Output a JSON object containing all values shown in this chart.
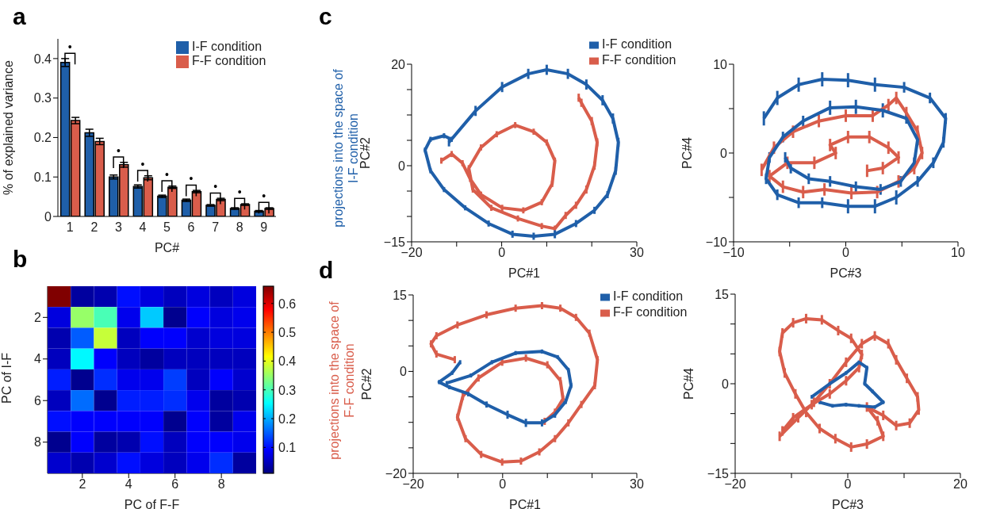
{
  "chart_data": [
    {
      "type": "bar",
      "title": "a",
      "xlabel": "PC#",
      "ylabel": "% of explained variance",
      "categories": [
        "1",
        "2",
        "3",
        "4",
        "5",
        "6",
        "7",
        "8",
        "9"
      ],
      "ylim": [
        0,
        0.45
      ],
      "yticks": [
        0,
        0.1,
        0.2,
        0.3,
        0.4
      ],
      "legend": "top right",
      "series": [
        {
          "name": "I-F condition",
          "color": "#1f5fa9",
          "values": [
            0.39,
            0.212,
            0.1,
            0.076,
            0.051,
            0.041,
            0.028,
            0.02,
            0.013
          ],
          "errors": [
            0.01,
            0.009,
            0.005,
            0.004,
            0.003,
            0.003,
            0.002,
            0.002,
            0.002
          ]
        },
        {
          "name": "F-F condition",
          "color": "#d95d4b",
          "values": [
            0.243,
            0.19,
            0.131,
            0.098,
            0.074,
            0.063,
            0.043,
            0.03,
            0.02
          ],
          "errors": [
            0.008,
            0.008,
            0.006,
            0.005,
            0.003,
            0.003,
            0.003,
            0.002,
            0.002
          ]
        }
      ],
      "annotations": [
        "•",
        "•",
        "•",
        "•",
        "•",
        "•",
        "•",
        "•"
      ]
    },
    {
      "type": "heatmap",
      "title": "b",
      "xlabel": "PC of F-F",
      "ylabel": "PC of I-F",
      "categories": [
        null,
        "2",
        null,
        "4",
        null,
        "6",
        null,
        "8",
        null
      ],
      "y_categories": [
        null,
        "2",
        null,
        "4",
        null,
        "6",
        null,
        "8",
        null
      ],
      "clim": [
        0.01,
        0.66
      ],
      "cticks": [
        0.1,
        0.2,
        0.3,
        0.4,
        0.5,
        0.6
      ],
      "cells": [
        [
          0.66,
          0.03,
          0.04,
          0.1,
          0.07,
          0.05,
          0.07,
          0.05,
          0.07
        ],
        [
          0.07,
          0.35,
          0.3,
          0.08,
          0.22,
          0.02,
          0.09,
          0.07,
          0.08
        ],
        [
          0.04,
          0.15,
          0.38,
          0.05,
          0.09,
          0.09,
          0.06,
          0.07,
          0.07
        ],
        [
          0.05,
          0.25,
          0.09,
          0.05,
          0.03,
          0.05,
          0.05,
          0.05,
          0.05
        ],
        [
          0.11,
          0.02,
          0.12,
          0.08,
          0.08,
          0.13,
          0.05,
          0.09,
          0.06
        ],
        [
          0.05,
          0.16,
          0.02,
          0.11,
          0.11,
          0.12,
          0.08,
          0.03,
          0.04
        ],
        [
          0.1,
          0.09,
          0.09,
          0.09,
          0.09,
          0.02,
          0.09,
          0.03,
          0.08
        ],
        [
          0.02,
          0.09,
          0.03,
          0.04,
          0.1,
          0.05,
          0.09,
          0.09,
          0.08
        ],
        [
          0.06,
          0.04,
          0.06,
          0.1,
          0.07,
          0.05,
          0.08,
          0.12,
          0.03
        ]
      ]
    },
    {
      "type": "line",
      "title": "c",
      "xlabel": "PC#1",
      "ylabel": "PC#2",
      "legend": "top right",
      "annotations": [
        "projections into the space of I-F condition"
      ],
      "xlim": [
        -20,
        30
      ],
      "xticks": [
        {
          "value": -20,
          "label": "−20"
        },
        {
          "value": -10,
          "label": null
        },
        0,
        {
          "value": 10,
          "label": null
        },
        {
          "value": 20,
          "label": null
        },
        30
      ],
      "ylim": [
        -15,
        20
      ],
      "yticks": [
        {
          "value": -15,
          "label": "−15"
        },
        {
          "value": -10,
          "label": null
        },
        {
          "value": -5,
          "label": null
        },
        0,
        {
          "value": 5,
          "label": null
        },
        {
          "value": 10,
          "label": null
        },
        {
          "value": 15,
          "label": null
        },
        20
      ],
      "series": [
        {
          "name": "I-F condition",
          "color": "#1f5fa9",
          "x": [
            -11.7,
            -5.8,
            0.1,
            5.9,
            10.0,
            14.7,
            18.8,
            22.4,
            24.7,
            25.9,
            25.3,
            23.5,
            20.6,
            16.5,
            11.8,
            7.1,
            2.4,
            -2.9,
            -8.1,
            -12.8,
            -15.8,
            -17.0,
            -15.8,
            -12.8,
            -11.1
          ],
          "values": [
            4.6,
            10.8,
            15.5,
            18.1,
            18.9,
            18.1,
            16.0,
            12.9,
            9.3,
            4.6,
            -1.0,
            -5.7,
            -8.8,
            -11.4,
            -13.5,
            -13.9,
            -13.5,
            -11.4,
            -8.3,
            -4.7,
            -1.0,
            3.1,
            5.2,
            5.9,
            5.2
          ],
          "errors": [
            0.8,
            1,
            1,
            1,
            1,
            1,
            1,
            1,
            1,
            0.9,
            0.8,
            0.7,
            0.7,
            0.7,
            0.8,
            0.7,
            0.7,
            0.6,
            0.5,
            0.5,
            0.5,
            0.5,
            0.5,
            0.5,
            0.5
          ]
        },
        {
          "name": "F-F condition",
          "color": "#d95d4b",
          "x": [
            -13.4,
            -11.1,
            -8.7,
            -7.0,
            -4.6,
            0.1,
            4.8,
            8.9,
            11.2,
            11.8,
            10.0,
            7.1,
            3.0,
            -1.1,
            -4.6,
            -7.3,
            -6.4,
            -2.3,
            3.6,
            8.9,
            11.8,
            14.2,
            16.5,
            18.8,
            20.6,
            21.2,
            20.0,
            17.7,
            17.1
          ],
          "values": [
            1.0,
            2.3,
            0.5,
            -2.6,
            -5.7,
            -8.3,
            -8.8,
            -7.2,
            -3.6,
            1.0,
            4.6,
            6.7,
            8.0,
            6.2,
            3.6,
            -0.5,
            -4.7,
            -8.3,
            -10.4,
            -11.9,
            -12.4,
            -9.8,
            -7.8,
            -4.7,
            0.0,
            4.6,
            8.8,
            12.4,
            13.4
          ],
          "errors": [
            0.6,
            0.6,
            0.6,
            0.6,
            0.6,
            0.6,
            0.6,
            0.6,
            0.6,
            0.6,
            0.6,
            0.6,
            0.6,
            0.6,
            0.6,
            0.6,
            0.6,
            0.6,
            0.6,
            0.6,
            0.6,
            0.7,
            0.7,
            0.8,
            0.8,
            0.8,
            0.8,
            0.8,
            0.8
          ]
        }
      ]
    },
    {
      "type": "line",
      "xlabel": "PC#3",
      "ylabel": "PC#4",
      "legend": false,
      "xlim": [
        -10,
        10
      ],
      "xticks": [
        {
          "value": -10,
          "label": "−10"
        },
        {
          "value": -5,
          "label": null
        },
        0,
        {
          "value": 5,
          "label": null
        },
        10
      ],
      "ylim": [
        -10,
        10
      ],
      "yticks": [
        {
          "value": -10,
          "label": "−10"
        },
        {
          "value": -5,
          "label": null
        },
        0,
        {
          "value": 5,
          "label": null
        },
        10
      ],
      "series": [
        {
          "color": "#1f5fa9",
          "x": [
            -7.3,
            -6.1,
            -4.2,
            -2.1,
            0.2,
            2.6,
            5.2,
            7.5,
            8.9,
            8.7,
            7.8,
            6.4,
            4.5,
            2.6,
            0.2,
            -2.1,
            -4.2,
            -6.1,
            -7.1,
            -6.8,
            -5.6,
            -3.8,
            -1.4,
            0.9,
            3.3,
            5.4,
            6.4,
            6.1,
            4.9,
            3.1,
            0.9,
            -1.4,
            -3.3,
            -4.9,
            -5.4
          ],
          "values": [
            3.9,
            6.2,
            7.7,
            8.3,
            8.2,
            7.7,
            7.4,
            6.2,
            3.9,
            1.2,
            -1.1,
            -3.2,
            -5.0,
            -6.0,
            -6.0,
            -5.6,
            -5.6,
            -4.7,
            -2.9,
            -0.5,
            1.8,
            3.6,
            5.1,
            5.2,
            4.8,
            3.9,
            1.5,
            -1.1,
            -3.2,
            -4.1,
            -3.8,
            -3.2,
            -2.9,
            -1.7,
            -0.5
          ],
          "errors": [
            0.8,
            0.8,
            0.8,
            0.8,
            0.8,
            0.8,
            0.6,
            0.6,
            0.6,
            0.6,
            0.6,
            0.6,
            0.8,
            0.8,
            0.8,
            0.6,
            0.6,
            0.6,
            0.6,
            0.6,
            0.6,
            0.6,
            0.8,
            0.8,
            0.8,
            0.6,
            0.6,
            0.6,
            0.6,
            0.6,
            0.6,
            0.6,
            0.6,
            0.6,
            0.6
          ]
        },
        {
          "color": "#d95d4b",
          "x": [
            -7.5,
            -6.4,
            -4.7,
            -2.4,
            0.0,
            2.4,
            3.8,
            4.5,
            5.4,
            6.4,
            6.8,
            6.1,
            4.7,
            2.8,
            0.5,
            -1.9,
            -3.8,
            -5.6,
            -6.8,
            -5.2,
            -2.8,
            -0.9,
            -1.4,
            0.2,
            2.1,
            3.8,
            4.7,
            3.3,
            1.9
          ],
          "values": [
            -1.9,
            0.6,
            2.4,
            3.6,
            4.2,
            4.2,
            5.4,
            6.2,
            4.5,
            2.4,
            0.0,
            -1.7,
            -3.2,
            -4.4,
            -4.5,
            -4.1,
            -4.4,
            -3.8,
            -2.6,
            -1.1,
            -1.1,
            0.0,
            0.9,
            1.8,
            1.8,
            0.6,
            -0.5,
            -1.7,
            -2.0
          ],
          "errors": [
            0.7,
            0.7,
            0.7,
            0.7,
            0.7,
            0.7,
            0.7,
            0.7,
            0.7,
            0.7,
            0.7,
            0.7,
            0.7,
            0.7,
            0.7,
            0.7,
            0.7,
            0.7,
            0.7,
            0.7,
            0.7,
            0.7,
            0.7,
            0.7,
            0.7,
            0.7,
            0.7,
            0.7,
            0.7
          ]
        }
      ]
    },
    {
      "type": "line",
      "title": "d",
      "xlabel": "PC#1",
      "ylabel": "PC#2",
      "legend": "top right",
      "annotations": [
        "projections into the space of F-F condition"
      ],
      "xlim": [
        -20,
        30
      ],
      "xticks": [
        {
          "value": -20,
          "label": "−20"
        },
        {
          "value": -10,
          "label": null
        },
        0,
        {
          "value": 10,
          "label": null
        },
        {
          "value": 20,
          "label": null
        },
        30
      ],
      "ylim": [
        -20,
        15
      ],
      "yticks": [
        {
          "value": -20,
          "label": "−20"
        },
        {
          "value": -15,
          "label": null
        },
        {
          "value": -10,
          "label": null
        },
        {
          "value": -5,
          "label": null
        },
        0,
        {
          "value": 5,
          "label": null
        },
        {
          "value": 10,
          "label": null
        },
        15
      ],
      "series": [
        {
          "name": "I-F condition",
          "color": "#1f5fa9",
          "x": [
            -9.5,
            -11.3,
            -14.2,
            -11.9,
            -7.7,
            -3.6,
            1.1,
            5.2,
            8.8,
            11.7,
            14.1,
            15.3,
            14.7,
            12.3,
            8.8,
            2.9,
            -2.4,
            -7.1,
            -12.5
          ],
          "values": [
            1.8,
            -0.3,
            -2.1,
            -3.1,
            -4.4,
            -6.5,
            -8.5,
            -10.1,
            -10.1,
            -8.5,
            -5.9,
            -2.8,
            0.3,
            2.8,
            3.9,
            3.6,
            1.8,
            -0.8,
            -2.3
          ],
          "errors": [
            0.4,
            0.4,
            0.4,
            0.4,
            0.5,
            0.6,
            0.8,
            0.8,
            0.7,
            0.6,
            0.5,
            0.5,
            0.4,
            0.4,
            0.4,
            0.4,
            0.4,
            0.4,
            0.4
          ]
        },
        {
          "name": "F-F condition",
          "color": "#d95d4b",
          "x": [
            -10.7,
            -14.8,
            -16.0,
            -14.8,
            -10.1,
            -3.6,
            2.9,
            8.8,
            12.9,
            16.4,
            19.4,
            21.2,
            20.6,
            17.6,
            14.7,
            11.7,
            8.2,
            4.1,
            -0.1,
            -4.8,
            -8.3,
            -10.1,
            -8.9,
            -5.4,
            -0.1,
            5.2,
            10.0,
            12.9,
            13.5,
            11.7,
            9.4
          ],
          "values": [
            2.3,
            3.4,
            5.4,
            7.0,
            9.1,
            11.1,
            12.4,
            12.9,
            12.4,
            10.6,
            7.5,
            2.3,
            -2.8,
            -6.5,
            -10.1,
            -13.2,
            -15.8,
            -17.6,
            -17.8,
            -16.3,
            -13.2,
            -9.0,
            -4.9,
            -1.3,
            1.8,
            2.6,
            1.3,
            -1.8,
            -5.4,
            -8.0,
            -9.8
          ],
          "errors": [
            0.7,
            0.7,
            0.7,
            0.7,
            0.7,
            0.7,
            0.7,
            0.7,
            0.7,
            0.7,
            0.7,
            0.7,
            0.7,
            0.7,
            0.7,
            0.7,
            0.7,
            0.7,
            0.7,
            0.7,
            0.7,
            0.7,
            0.7,
            0.7,
            0.7,
            0.7,
            0.7,
            0.7,
            0.7,
            0.7,
            0.7
          ]
        }
      ]
    },
    {
      "type": "line",
      "xlabel": "PC#3",
      "ylabel": "PC#4",
      "legend": false,
      "xlim": [
        -20,
        20
      ],
      "xticks": [
        {
          "value": -20,
          "label": "−20"
        },
        {
          "value": -10,
          "label": null
        },
        0,
        {
          "value": 10,
          "label": null
        },
        20
      ],
      "ylim": [
        -15,
        15
      ],
      "yticks": [
        {
          "value": -15,
          "label": "−15"
        },
        {
          "value": -10,
          "label": null
        },
        {
          "value": -5,
          "label": null
        },
        0,
        {
          "value": 5,
          "label": null
        },
        {
          "value": 10,
          "label": null
        },
        15
      ],
      "series": [
        {
          "color": "#1f5fa9",
          "x": [
            -6.4,
            -3.2,
            -0.3,
            2.0,
            3.4,
            3.0,
            4.4,
            6.3,
            4.8,
            2.0,
            -0.3,
            -2.7,
            -5.0
          ],
          "values": [
            -2.2,
            0.0,
            1.8,
            3.6,
            2.7,
            0.0,
            -1.3,
            -3.1,
            -3.9,
            -3.7,
            -3.5,
            -3.7,
            -3.1
          ],
          "errors": [
            0.3,
            0.3,
            0.3,
            0.3,
            0.3,
            0.3,
            0.3,
            0.3,
            0.3,
            0.3,
            0.3,
            0.3,
            0.3
          ]
        },
        {
          "color": "#d95d4b",
          "x": [
            -12.1,
            -8.8,
            -6.0,
            -3.2,
            -0.3,
            2.5,
            4.8,
            7.2,
            8.6,
            10.5,
            12.4,
            12.6,
            11.0,
            8.6,
            6.3,
            3.4,
            5.3,
            6.3,
            3.4,
            0.6,
            -2.2,
            -5.0,
            -7.4,
            -9.3,
            -11.2,
            -12.1,
            -11.6,
            -9.7,
            -7.4,
            -4.6,
            -1.7,
            0.6,
            2.5,
            2.0,
            -0.3,
            -3.2,
            -6.4,
            -9.7,
            -11.6
          ],
          "values": [
            -8.8,
            -5.7,
            -3.1,
            0.0,
            3.6,
            6.7,
            8.0,
            6.7,
            4.0,
            0.9,
            -2.2,
            -4.4,
            -6.6,
            -7.0,
            -5.3,
            -3.9,
            -6.2,
            -8.8,
            -10.1,
            -10.6,
            -9.2,
            -7.5,
            -4.8,
            -1.7,
            1.8,
            5.4,
            8.5,
            10.2,
            10.9,
            10.7,
            8.9,
            7.6,
            4.9,
            2.7,
            0.5,
            -1.7,
            -3.5,
            -5.7,
            -7.9
          ],
          "errors": [
            0.8,
            0.8,
            0.8,
            0.8,
            0.8,
            0.8,
            0.8,
            0.8,
            0.8,
            0.8,
            0.8,
            0.8,
            0.8,
            0.8,
            0.8,
            0.8,
            0.8,
            0.8,
            0.8,
            0.8,
            0.8,
            0.8,
            0.8,
            0.8,
            0.8,
            0.8,
            0.8,
            0.8,
            0.8,
            0.8,
            0.8,
            0.8,
            0.8,
            0.8,
            0.8,
            0.8,
            0.8,
            0.8,
            0.8
          ]
        }
      ]
    }
  ]
}
